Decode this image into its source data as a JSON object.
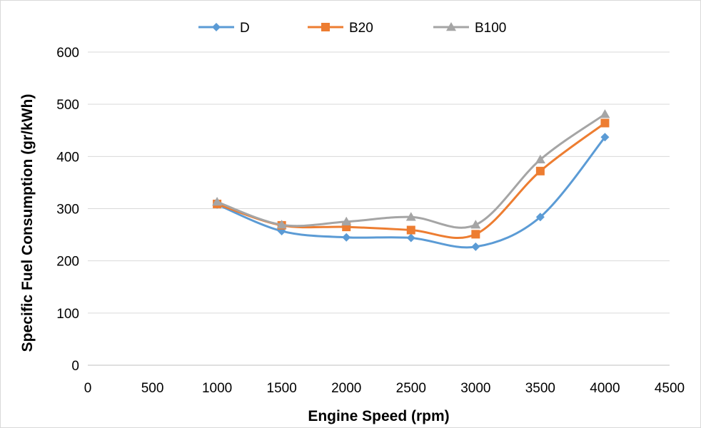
{
  "chart_data": {
    "type": "scatter",
    "xlabel": "Engine Speed (rpm)",
    "ylabel": "Specific Fuel Consumption  (gr/kWh)",
    "xlim": [
      0,
      4500
    ],
    "ylim": [
      0,
      600
    ],
    "xticks": [
      0,
      500,
      1000,
      1500,
      2000,
      2500,
      3000,
      3500,
      4000,
      4500
    ],
    "yticks": [
      0,
      100,
      200,
      300,
      400,
      500,
      600
    ],
    "grid": "horizontal",
    "legend_position": "top",
    "series": [
      {
        "name": "D",
        "color": "#5B9BD5",
        "marker": "diamond",
        "x": [
          1000,
          1500,
          2000,
          2500,
          3000,
          3500,
          4000
        ],
        "y": [
          308,
          257,
          245,
          244,
          227,
          284,
          437
        ]
      },
      {
        "name": "B20",
        "color": "#ED7D31",
        "marker": "square",
        "x": [
          1000,
          1500,
          2000,
          2500,
          3000,
          3500,
          4000
        ],
        "y": [
          309,
          268,
          265,
          259,
          251,
          372,
          464
        ]
      },
      {
        "name": "B100",
        "color": "#A5A5A5",
        "marker": "triangle",
        "x": [
          1000,
          1500,
          2000,
          2500,
          3000,
          3500,
          4000
        ],
        "y": [
          313,
          269,
          275,
          284,
          269,
          394,
          481
        ]
      }
    ]
  }
}
